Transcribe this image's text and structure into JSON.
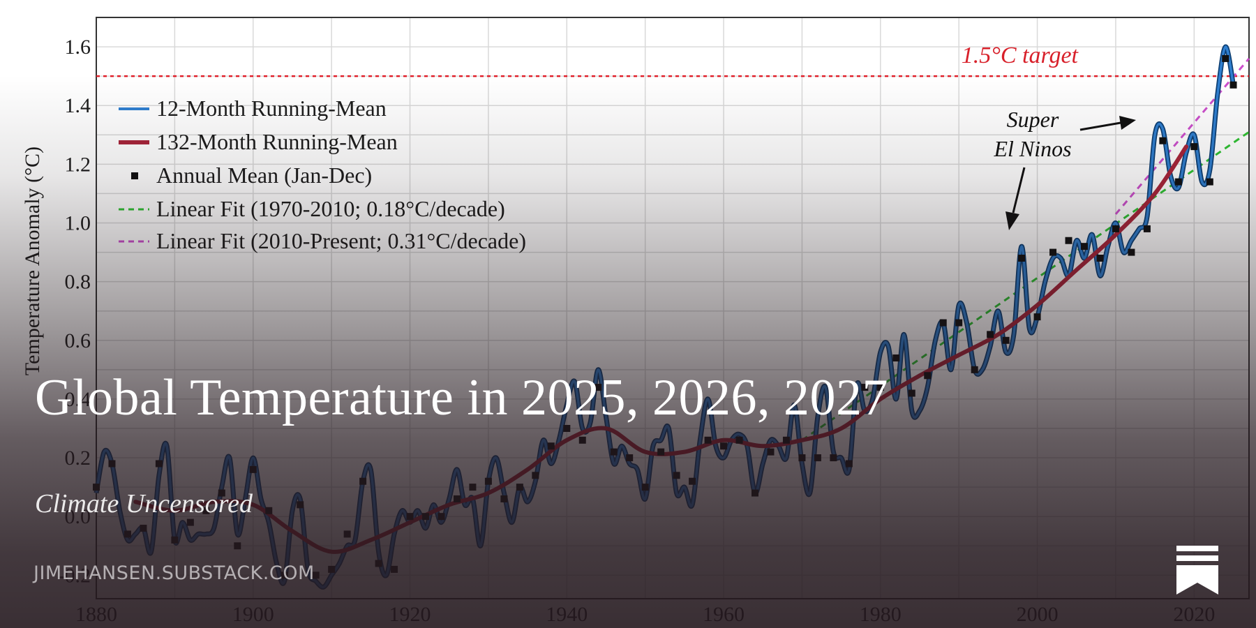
{
  "chart_data": {
    "type": "line",
    "ylabel": "Temperature Anomaly (°C)",
    "xlim": [
      1880,
      2027
    ],
    "ylim": [
      -0.28,
      1.7
    ],
    "grid": true,
    "x_ticks": [
      1880,
      1900,
      1920,
      1940,
      1960,
      1980,
      2000,
      2020
    ],
    "y_ticks": [
      1.6,
      1.4,
      1.2,
      1.0,
      0.8,
      0.6,
      0.4,
      0.2,
      0.0,
      -0.2
    ],
    "y_tick_labels": [
      "1.6",
      "1.4",
      "1.2",
      "1.0",
      "0.8",
      "0.6",
      "0.4",
      "0.2",
      "0.0",
      "-0.2"
    ],
    "legend_position": "top-left",
    "series": [
      {
        "name": "12-Month Running-Mean",
        "kind": "line",
        "color": "#2f7fd0",
        "x": [
          1880,
          1881,
          1882,
          1883,
          1884,
          1885,
          1886,
          1887,
          1888,
          1889,
          1890,
          1891,
          1892,
          1893,
          1894,
          1895,
          1896,
          1897,
          1898,
          1899,
          1900,
          1901,
          1902,
          1903,
          1904,
          1905,
          1906,
          1907,
          1908,
          1909,
          1910,
          1911,
          1912,
          1913,
          1914,
          1915,
          1916,
          1917,
          1918,
          1919,
          1920,
          1921,
          1922,
          1923,
          1924,
          1925,
          1926,
          1927,
          1928,
          1929,
          1930,
          1931,
          1932,
          1933,
          1934,
          1935,
          1936,
          1937,
          1938,
          1939,
          1940,
          1941,
          1942,
          1943,
          1944,
          1945,
          1946,
          1947,
          1948,
          1949,
          1950,
          1951,
          1952,
          1953,
          1954,
          1955,
          1956,
          1957,
          1958,
          1959,
          1960,
          1961,
          1962,
          1963,
          1964,
          1965,
          1966,
          1967,
          1968,
          1969,
          1970,
          1971,
          1972,
          1973,
          1974,
          1975,
          1976,
          1977,
          1978,
          1979,
          1980,
          1981,
          1982,
          1983,
          1984,
          1985,
          1986,
          1987,
          1988,
          1989,
          1990,
          1991,
          1992,
          1993,
          1994,
          1995,
          1996,
          1997,
          1998,
          1999,
          2000,
          2001,
          2002,
          2003,
          2004,
          2005,
          2006,
          2007,
          2008,
          2009,
          2010,
          2011,
          2012,
          2013,
          2014,
          2015,
          2016,
          2017,
          2018,
          2019,
          2020,
          2021,
          2022,
          2023,
          2024,
          2025
        ],
        "values": [
          0.08,
          0.22,
          0.18,
          0.02,
          -0.08,
          -0.06,
          -0.04,
          -0.12,
          0.14,
          0.24,
          -0.08,
          -0.02,
          -0.08,
          -0.06,
          -0.06,
          -0.04,
          0.1,
          0.2,
          -0.06,
          0.06,
          0.2,
          0.06,
          -0.02,
          -0.16,
          -0.22,
          0.02,
          0.06,
          -0.18,
          -0.22,
          -0.24,
          -0.2,
          -0.16,
          -0.1,
          -0.08,
          0.12,
          0.16,
          -0.12,
          -0.2,
          -0.06,
          0.02,
          -0.02,
          0.02,
          -0.04,
          0.04,
          -0.02,
          0.06,
          0.16,
          0.04,
          0.06,
          -0.1,
          0.12,
          0.2,
          0.08,
          -0.02,
          0.1,
          0.05,
          0.12,
          0.26,
          0.18,
          0.26,
          0.38,
          0.46,
          0.3,
          0.32,
          0.5,
          0.34,
          0.18,
          0.24,
          0.18,
          0.16,
          0.06,
          0.24,
          0.26,
          0.3,
          0.08,
          0.1,
          0.04,
          0.26,
          0.4,
          0.24,
          0.2,
          0.26,
          0.28,
          0.24,
          0.08,
          0.18,
          0.26,
          0.24,
          0.2,
          0.38,
          0.18,
          0.08,
          0.34,
          0.44,
          0.22,
          0.2,
          0.16,
          0.45,
          0.36,
          0.4,
          0.56,
          0.58,
          0.4,
          0.62,
          0.36,
          0.36,
          0.44,
          0.6,
          0.66,
          0.5,
          0.72,
          0.66,
          0.5,
          0.5,
          0.58,
          0.7,
          0.56,
          0.62,
          0.92,
          0.64,
          0.68,
          0.8,
          0.88,
          0.88,
          0.82,
          0.94,
          0.88,
          0.96,
          0.82,
          0.92,
          1.0,
          0.9,
          0.94,
          0.98,
          1.02,
          1.3,
          1.32,
          1.16,
          1.12,
          1.24,
          1.3,
          1.14,
          1.18,
          1.44,
          1.6,
          1.47
        ]
      },
      {
        "name": "132-Month Running-Mean",
        "kind": "line",
        "color": "#a8253a",
        "x": [
          1885,
          1890,
          1895,
          1900,
          1905,
          1910,
          1915,
          1920,
          1925,
          1930,
          1935,
          1940,
          1945,
          1950,
          1955,
          1960,
          1965,
          1970,
          1975,
          1980,
          1985,
          1990,
          1995,
          2000,
          2005,
          2010,
          2015,
          2019
        ],
        "values": [
          0.05,
          0.02,
          0.05,
          0.04,
          -0.05,
          -0.12,
          -0.08,
          -0.02,
          0.04,
          0.08,
          0.16,
          0.26,
          0.3,
          0.22,
          0.22,
          0.26,
          0.24,
          0.26,
          0.3,
          0.4,
          0.48,
          0.55,
          0.62,
          0.72,
          0.84,
          0.96,
          1.1,
          1.26
        ]
      },
      {
        "name": "Annual Mean (Jan-Dec)",
        "kind": "scatter",
        "color": "#111111",
        "x": [
          1880,
          1882,
          1884,
          1886,
          1888,
          1890,
          1892,
          1894,
          1896,
          1898,
          1900,
          1902,
          1904,
          1906,
          1908,
          1910,
          1912,
          1914,
          1916,
          1918,
          1920,
          1922,
          1924,
          1926,
          1928,
          1930,
          1932,
          1934,
          1936,
          1938,
          1940,
          1942,
          1944,
          1946,
          1948,
          1950,
          1952,
          1954,
          1956,
          1958,
          1960,
          1962,
          1964,
          1966,
          1968,
          1970,
          1972,
          1974,
          1976,
          1978,
          1980,
          1982,
          1984,
          1986,
          1988,
          1990,
          1992,
          1994,
          1996,
          1998,
          2000,
          2002,
          2004,
          2006,
          2008,
          2010,
          2012,
          2014,
          2016,
          2018,
          2020,
          2022,
          2024,
          2025
        ],
        "values": [
          0.1,
          0.18,
          -0.06,
          -0.04,
          0.18,
          -0.08,
          -0.02,
          0.02,
          0.08,
          -0.1,
          0.16,
          0.02,
          -0.2,
          0.04,
          -0.2,
          -0.18,
          -0.06,
          0.12,
          -0.16,
          -0.18,
          0.0,
          0.0,
          0.0,
          0.06,
          0.1,
          0.12,
          0.06,
          0.1,
          0.14,
          0.24,
          0.3,
          0.26,
          0.44,
          0.22,
          0.2,
          0.1,
          0.22,
          0.14,
          0.12,
          0.26,
          0.24,
          0.26,
          0.08,
          0.22,
          0.26,
          0.2,
          0.2,
          0.2,
          0.18,
          0.44,
          0.44,
          0.54,
          0.42,
          0.48,
          0.66,
          0.66,
          0.5,
          0.62,
          0.6,
          0.88,
          0.68,
          0.9,
          0.94,
          0.92,
          0.88,
          0.98,
          0.9,
          0.98,
          1.28,
          1.14,
          1.26,
          1.14,
          1.56,
          1.47
        ]
      },
      {
        "name": "Linear Fit (1970-2010; 0.18°C/decade)",
        "kind": "dashed",
        "color": "#2fc233",
        "x": [
          1970,
          2027
        ],
        "values": [
          0.26,
          1.31
        ]
      },
      {
        "name": "Linear Fit (2010-Present; 0.31°C/decade)",
        "kind": "dashed",
        "color": "#cc4fcc",
        "x": [
          2010,
          2027
        ],
        "values": [
          1.03,
          1.56
        ]
      }
    ],
    "reference_line": {
      "y": 1.5,
      "label": "1.5°C target",
      "color": "#e0202b"
    },
    "annotations": {
      "line1": "Super",
      "line2": "El Ninos"
    }
  },
  "post": {
    "title": "Global Temperature in 2025, 2026, 2027",
    "publication": "Climate Uncensored",
    "domain": "JIMEHANSEN.SUBSTACK.COM"
  },
  "logo": {
    "icon": "substack-bookmark-icon",
    "color": "#ffffff"
  }
}
